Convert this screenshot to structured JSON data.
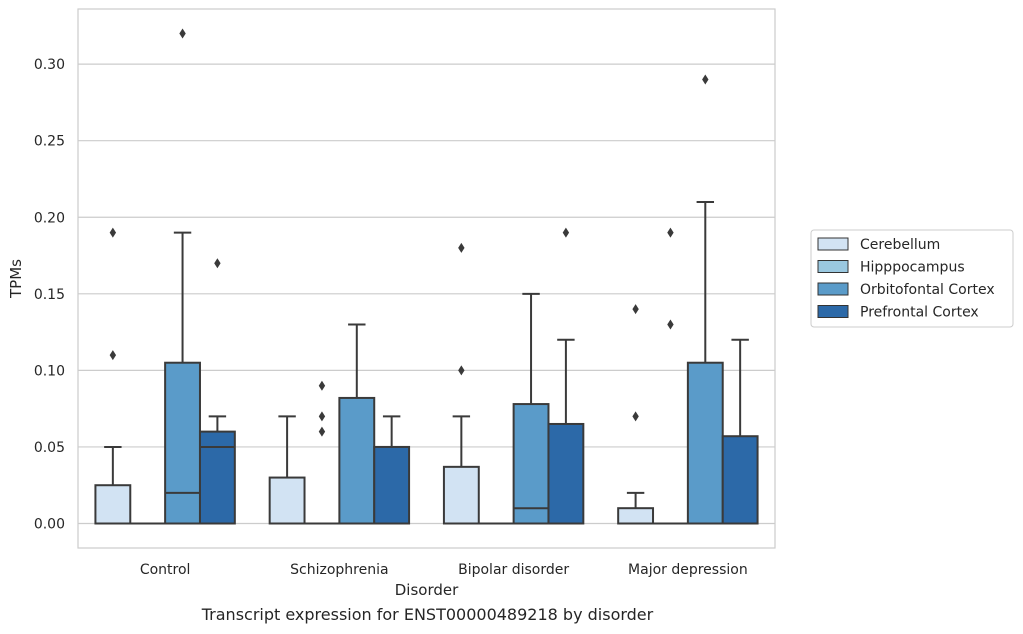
{
  "caption": "Transcript expression for ENST00000489218 by disorder",
  "chart_data": {
    "type": "box",
    "xlabel": "Disorder",
    "ylabel": "TPMs",
    "ylim": [
      -0.016,
      0.336
    ],
    "yticks": [
      0.0,
      0.05,
      0.1,
      0.15,
      0.2,
      0.25,
      0.3
    ],
    "ytick_labels": [
      "0.00",
      "0.05",
      "0.10",
      "0.15",
      "0.20",
      "0.25",
      "0.30"
    ],
    "grid": true,
    "legend_position": "right",
    "categories": [
      "Control",
      "Schizophrenia",
      "Bipolar disorder",
      "Major depression"
    ],
    "series": [
      {
        "name": "Cerebellum",
        "color": "#d2e3f3",
        "boxes": [
          {
            "q1": 0.0,
            "median": 0.0,
            "q3": 0.025,
            "whisker_low": 0.0,
            "whisker_high": 0.05,
            "outliers": [
              0.11,
              0.19
            ]
          },
          {
            "q1": 0.0,
            "median": 0.0,
            "q3": 0.03,
            "whisker_low": 0.0,
            "whisker_high": 0.07,
            "outliers": []
          },
          {
            "q1": 0.0,
            "median": 0.0,
            "q3": 0.037,
            "whisker_low": 0.0,
            "whisker_high": 0.07,
            "outliers": [
              0.1,
              0.18
            ]
          },
          {
            "q1": 0.0,
            "median": 0.0,
            "q3": 0.01,
            "whisker_low": 0.0,
            "whisker_high": 0.02,
            "outliers": [
              0.07,
              0.14
            ]
          }
        ]
      },
      {
        "name": "Hipppocampus",
        "color": "#9ac8e0",
        "boxes": [
          {
            "q1": 0.0,
            "median": 0.0,
            "q3": 0.0,
            "whisker_low": 0.0,
            "whisker_high": 0.0,
            "outliers": []
          },
          {
            "q1": 0.0,
            "median": 0.0,
            "q3": 0.0,
            "whisker_low": 0.0,
            "whisker_high": 0.0,
            "outliers": [
              0.06,
              0.07,
              0.09
            ]
          },
          {
            "q1": 0.0,
            "median": 0.0,
            "q3": 0.0,
            "whisker_low": 0.0,
            "whisker_high": 0.0,
            "outliers": []
          },
          {
            "q1": 0.0,
            "median": 0.0,
            "q3": 0.0,
            "whisker_low": 0.0,
            "whisker_high": 0.0,
            "outliers": [
              0.13,
              0.19
            ]
          }
        ]
      },
      {
        "name": "Orbitofontal Cortex",
        "color": "#5a9bc9",
        "boxes": [
          {
            "q1": 0.0,
            "median": 0.02,
            "q3": 0.105,
            "whisker_low": 0.0,
            "whisker_high": 0.19,
            "outliers": [
              0.32
            ]
          },
          {
            "q1": 0.0,
            "median": 0.0,
            "q3": 0.082,
            "whisker_low": 0.0,
            "whisker_high": 0.13,
            "outliers": []
          },
          {
            "q1": 0.0,
            "median": 0.01,
            "q3": 0.078,
            "whisker_low": 0.0,
            "whisker_high": 0.15,
            "outliers": []
          },
          {
            "q1": 0.0,
            "median": 0.0,
            "q3": 0.105,
            "whisker_low": 0.0,
            "whisker_high": 0.21,
            "outliers": [
              0.29
            ]
          }
        ]
      },
      {
        "name": "Prefrontal Cortex",
        "color": "#2c69a8",
        "boxes": [
          {
            "q1": 0.0,
            "median": 0.05,
            "q3": 0.06,
            "whisker_low": 0.0,
            "whisker_high": 0.07,
            "outliers": [
              0.17
            ]
          },
          {
            "q1": 0.0,
            "median": 0.0,
            "q3": 0.05,
            "whisker_low": 0.0,
            "whisker_high": 0.07,
            "outliers": []
          },
          {
            "q1": 0.0,
            "median": 0.0,
            "q3": 0.065,
            "whisker_low": 0.0,
            "whisker_high": 0.12,
            "outliers": [
              0.19
            ]
          },
          {
            "q1": 0.0,
            "median": 0.0,
            "q3": 0.057,
            "whisker_low": 0.0,
            "whisker_high": 0.12,
            "outliers": []
          }
        ]
      }
    ]
  }
}
